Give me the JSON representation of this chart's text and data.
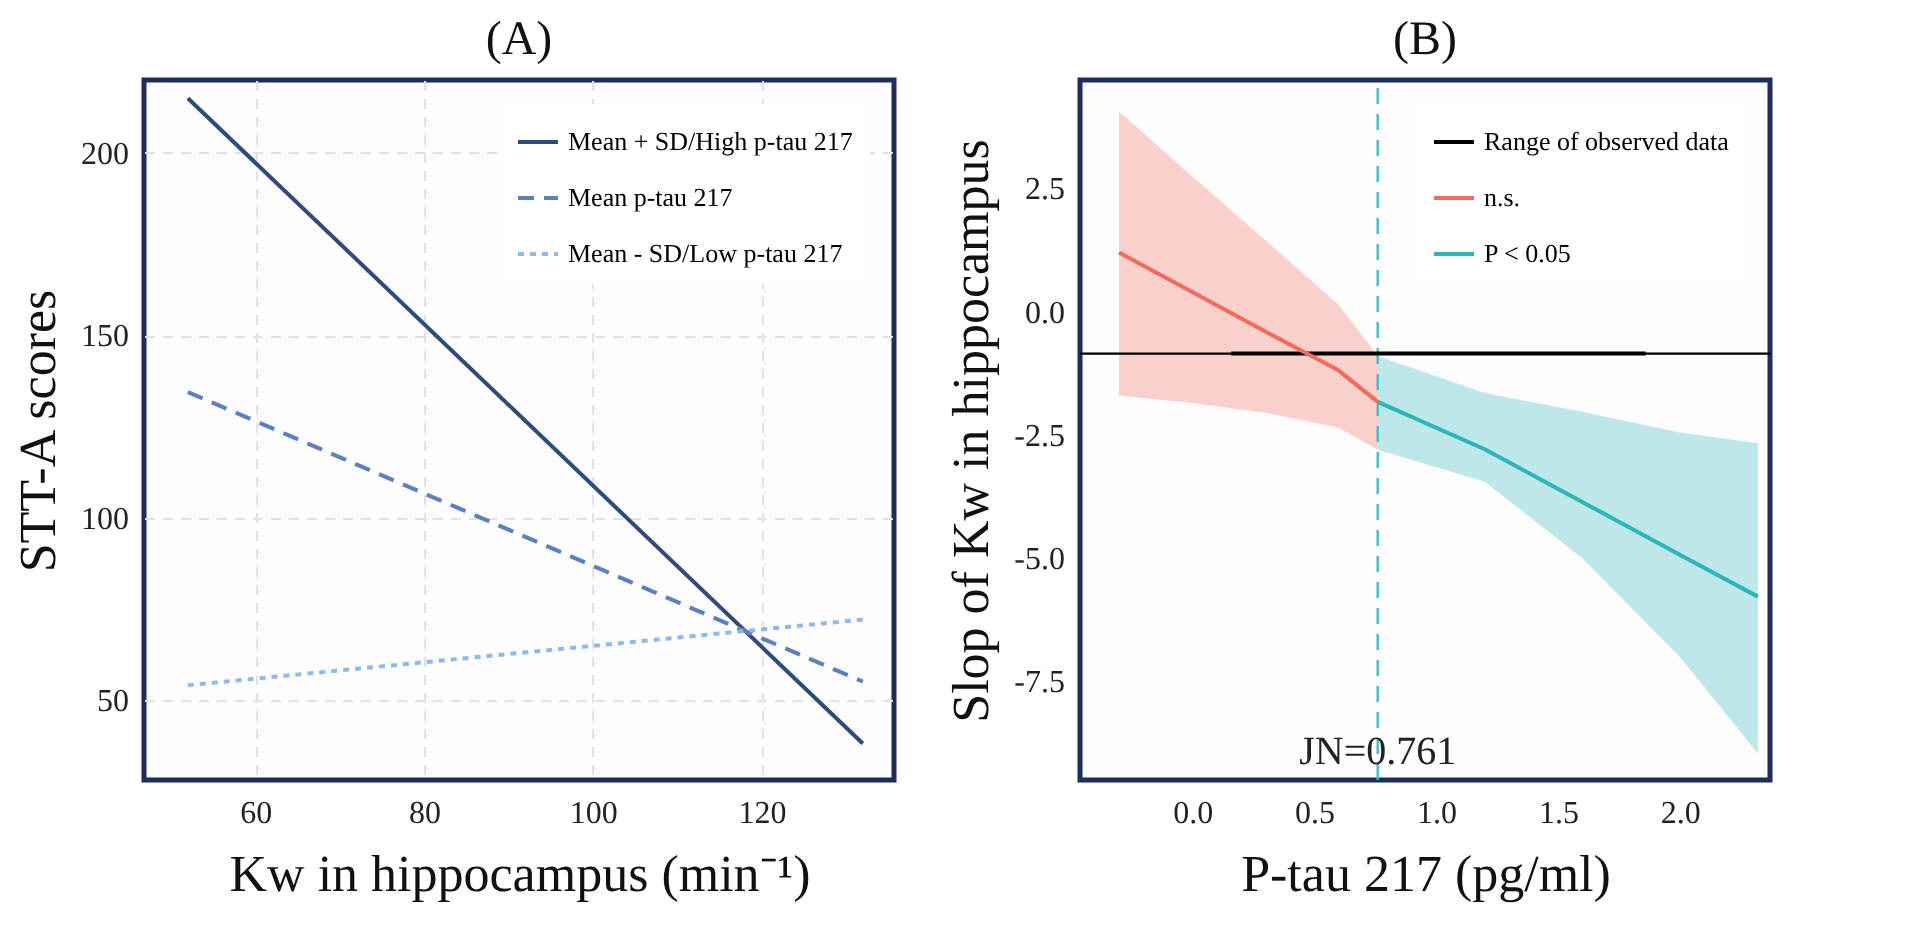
{
  "chart_data": [
    {
      "type": "line",
      "title": "(A)",
      "xlabel": "Kw in hippocampus (min⁻¹)",
      "ylabel": "STT-A scores",
      "xlim": [
        46.8,
        135.7
      ],
      "xticks": [
        60,
        80,
        100,
        120
      ],
      "ylim": [
        28,
        220
      ],
      "yticks": [
        50,
        100,
        150,
        200
      ],
      "grid": true,
      "legend": "top right",
      "series": [
        {
          "name": "Mean + SD/High p-tau 217",
          "color": "#2f4b7c",
          "line_style": "solid",
          "x": [
            52,
            132
          ],
          "values": [
            215,
            38
          ]
        },
        {
          "name": "Mean p-tau 217",
          "color": "#5b7fc0",
          "line_style": "dashed",
          "x": [
            52,
            132
          ],
          "values": [
            134.4,
            55
          ]
        },
        {
          "name": "Mean - SD/Low p-tau 217",
          "color": "#8fb8ee",
          "line_style": "dotted",
          "x": [
            52,
            132
          ],
          "values": [
            54,
            72
          ]
        }
      ]
    },
    {
      "type": "line",
      "title": "(B)",
      "xlabel": "P-tau 217 (pg/ml)",
      "ylabel": "Slop of Kw in hippocampus",
      "xlim": [
        -0.46,
        2.37
      ],
      "xticks": [
        {
          "value": 0,
          "label": "0.0"
        },
        0.5,
        {
          "value": 1,
          "label": "1.0"
        },
        1.5,
        {
          "value": 2,
          "label": "2.0"
        }
      ],
      "ylim": [
        -9.5,
        4.7
      ],
      "yticks": [
        {
          "value": -7.5,
          "label": "-7.5"
        },
        {
          "value": -5,
          "label": "-5.0"
        },
        {
          "value": -2.5,
          "label": "-2.5"
        },
        {
          "value": 0,
          "label": "0.0"
        },
        {
          "value": 2.5,
          "label": "2.5"
        }
      ],
      "legend": "top right",
      "series": [
        {
          "name": "Range of observed data",
          "color": "#000000",
          "line_style": "solid",
          "x": [
            0.16,
            1.86
          ],
          "values": [
            -0.85,
            -0.85
          ]
        },
        {
          "name": "n.s.",
          "color": "#f26b5b",
          "line_style": "solid",
          "x": [
            -0.3,
            0.0,
            0.3,
            0.6,
            0.761
          ],
          "values": [
            1.2,
            0.4,
            -0.4,
            -1.19,
            -1.83
          ],
          "lower": [
            -1.7,
            -1.85,
            -2.05,
            -2.35,
            -2.8
          ],
          "upper": [
            4.06,
            2.75,
            1.45,
            0.14,
            -0.9
          ]
        },
        {
          "name": "P < 0.05",
          "color": "#2bb5b8",
          "line_style": "solid",
          "x": [
            0.761,
            1.2,
            1.6,
            2.0,
            2.32
          ],
          "values": [
            -1.83,
            -2.79,
            -3.86,
            -4.93,
            -5.78
          ],
          "lower": [
            -2.8,
            -3.45,
            -5.0,
            -7.0,
            -8.96
          ],
          "upper": [
            -0.9,
            -1.65,
            -2.03,
            -2.45,
            -2.67
          ]
        }
      ],
      "ref_lines": [
        {
          "axis": "y",
          "value": -0.85,
          "color": "#000000",
          "line_style": "solid"
        },
        {
          "axis": "x",
          "value": 0.761,
          "label": "JN=0.761",
          "color": "#3cc0c8",
          "line_style": "dashed"
        }
      ]
    }
  ]
}
